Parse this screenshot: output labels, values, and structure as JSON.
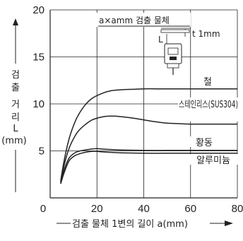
{
  "chart_data": {
    "type": "line",
    "title": "",
    "xlabel": "검출 물체 1변의 길이 a(mm)",
    "ylabel_chars": [
      "검",
      "출",
      "거",
      "리",
      "L",
      "(mm)"
    ],
    "xlim": [
      0,
      80
    ],
    "ylim": [
      0,
      20
    ],
    "x_ticks": [
      0,
      20,
      40,
      60,
      80
    ],
    "y_ticks": [
      5,
      10,
      15,
      20
    ],
    "grid": true,
    "series": [
      {
        "name": "철",
        "x": [
          4.5,
          6,
          8,
          10,
          12,
          15,
          18,
          22,
          26,
          30,
          35,
          40,
          45,
          50,
          60,
          70,
          80
        ],
        "y": [
          1.8,
          4.0,
          6.2,
          7.7,
          8.8,
          9.9,
          10.6,
          11.1,
          11.4,
          11.5,
          11.55,
          11.6,
          11.6,
          11.6,
          11.6,
          11.6,
          11.6
        ]
      },
      {
        "name": "스테인리스(SUS304)",
        "x": [
          4.5,
          6,
          8,
          10,
          12,
          15,
          18,
          22,
          26,
          30,
          35,
          40,
          45,
          50,
          55,
          60,
          70,
          80
        ],
        "y": [
          1.7,
          3.5,
          5.2,
          6.3,
          7.1,
          7.8,
          8.3,
          8.6,
          8.7,
          8.65,
          8.5,
          8.3,
          8.1,
          7.95,
          7.9,
          7.85,
          7.85,
          7.85
        ]
      },
      {
        "name": "황동",
        "x": [
          4.5,
          6,
          8,
          10,
          12,
          15,
          18,
          20,
          22,
          25,
          30,
          40,
          50,
          60,
          70,
          80
        ],
        "y": [
          1.6,
          3.0,
          4.2,
          4.7,
          4.95,
          5.1,
          5.2,
          5.25,
          5.2,
          5.15,
          5.1,
          5.05,
          5.05,
          5.05,
          5.05,
          5.05
        ]
      },
      {
        "name": "알루미늄",
        "x": [
          4.5,
          6,
          8,
          10,
          12,
          15,
          18,
          20,
          22,
          25,
          30,
          40,
          50,
          60,
          70,
          80
        ],
        "y": [
          1.5,
          2.7,
          3.9,
          4.4,
          4.65,
          4.85,
          4.95,
          4.95,
          4.9,
          4.85,
          4.8,
          4.75,
          4.75,
          4.75,
          4.75,
          4.75
        ]
      }
    ],
    "inset": {
      "title": "a×amm 검출 물체",
      "thickness": "t 1mm",
      "axis_mark": "L"
    }
  }
}
